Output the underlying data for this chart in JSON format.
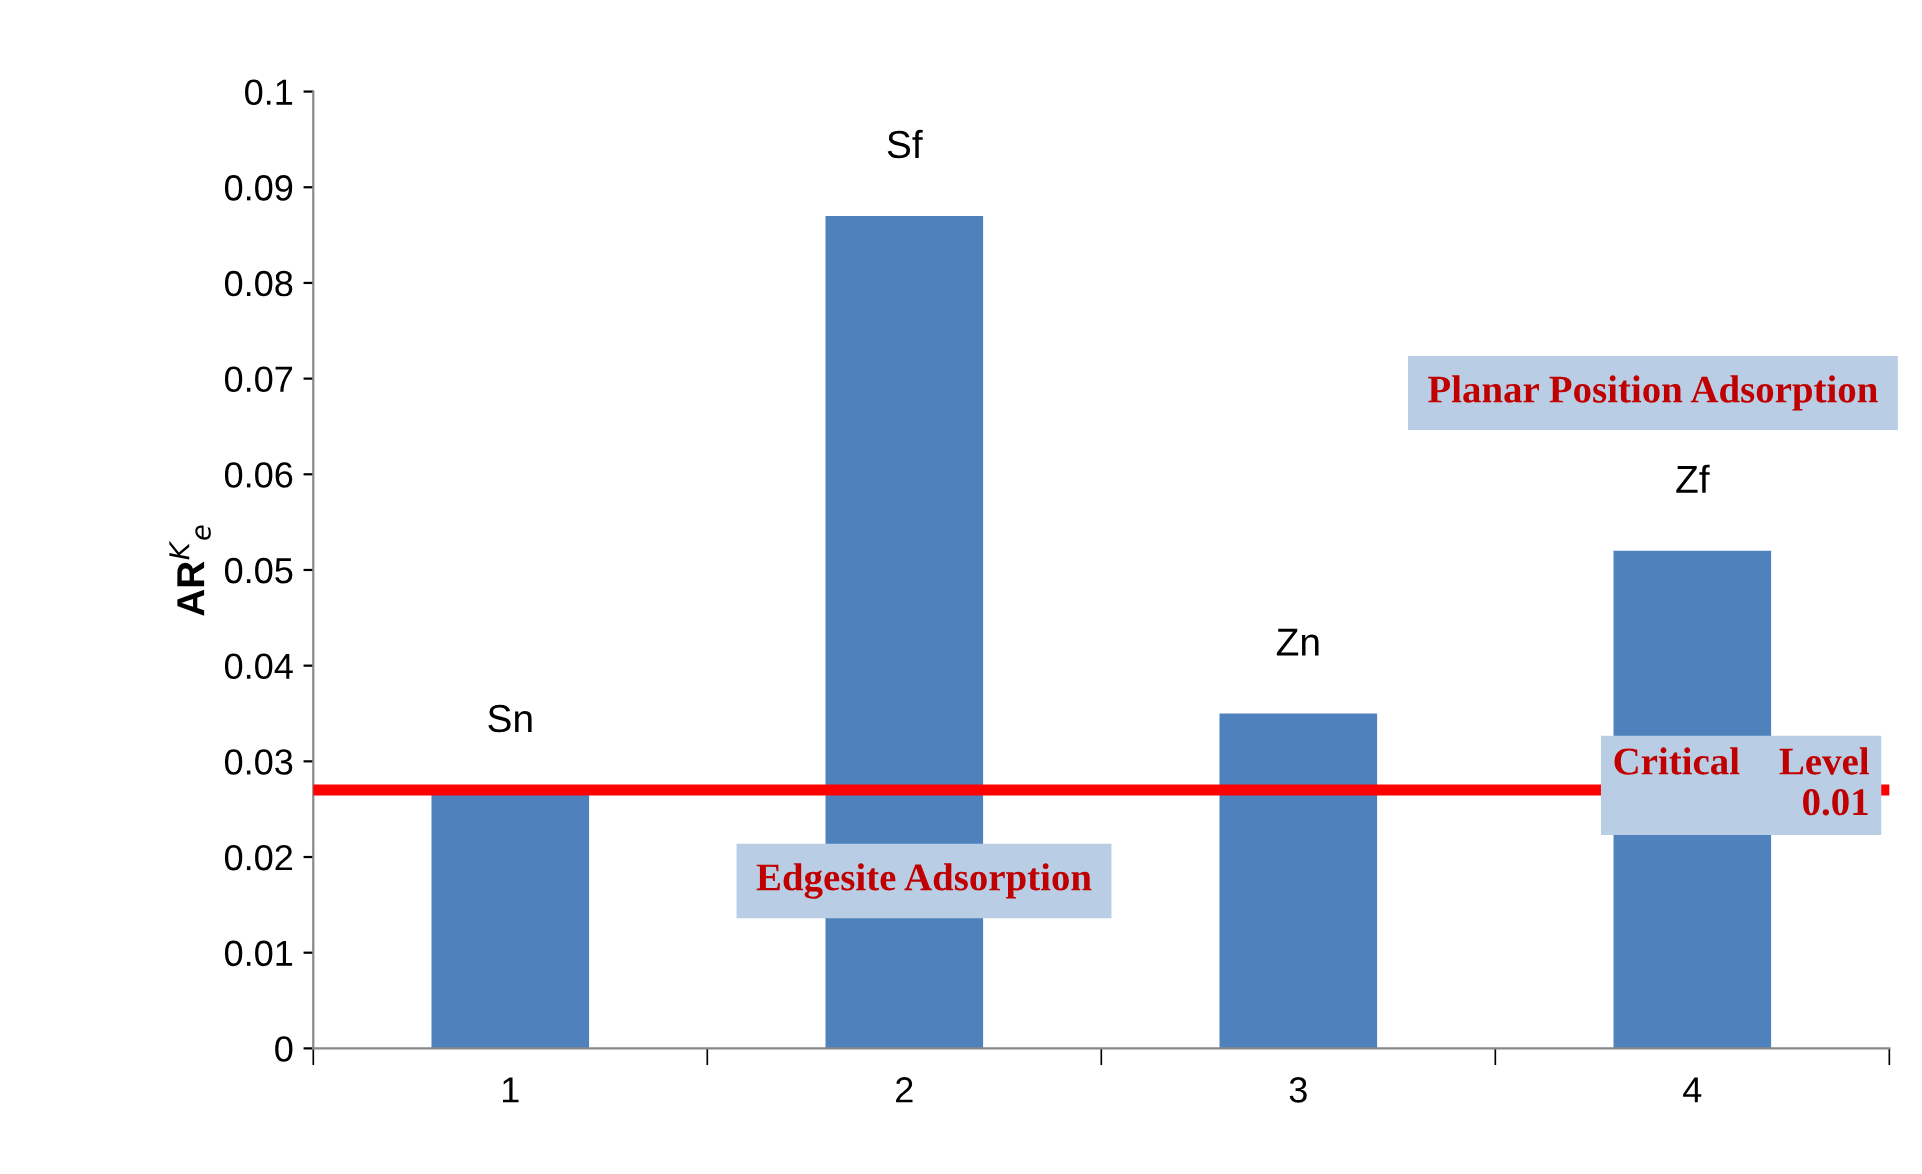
{
  "chart_data": {
    "type": "bar",
    "categories": [
      "1",
      "2",
      "3",
      "4"
    ],
    "values": [
      0.027,
      0.087,
      0.035,
      0.052
    ],
    "color": "#4f81bd",
    "ylabel": "AR$^{K}$$_{e}$",
    "ylim": [
      0,
      0.1
    ],
    "yticks": [
      0,
      0.01,
      0.02,
      0.03,
      0.04,
      0.05,
      0.06,
      0.07,
      0.08,
      0.09,
      0.1
    ],
    "grid": false,
    "legend": false,
    "annotations": [
      {
        "text": "Sn",
        "x": "1",
        "y": 0.027
      },
      {
        "text": "Sf",
        "x": "2",
        "y": 0.087
      },
      {
        "text": "Zn",
        "x": "3",
        "y": 0.035
      },
      {
        "text": "Zf",
        "x": "4",
        "y": 0.052
      },
      "Planar Position Adsorption",
      "Edgesite Adsorption"
    ],
    "ref_lines": [
      {
        "axis": "y",
        "value": 0.027,
        "label": "Critical    Level\n0.01",
        "color": "#ff0000"
      }
    ]
  }
}
